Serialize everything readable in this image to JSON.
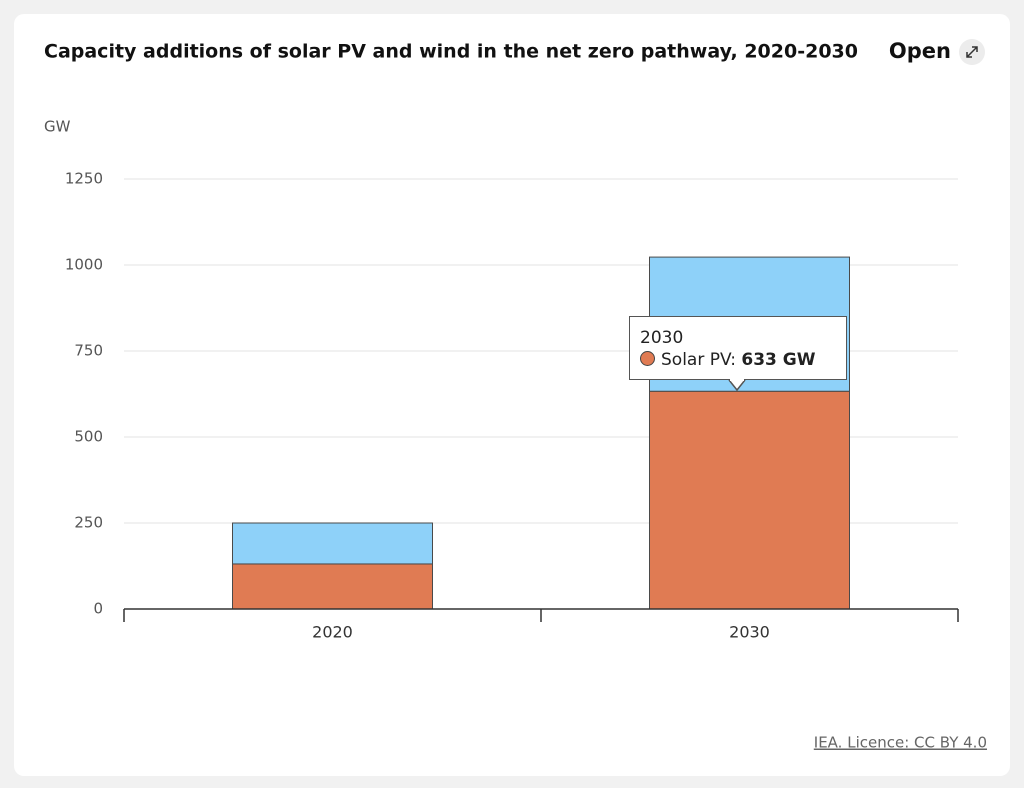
{
  "chart_data": {
    "type": "stacked-bar",
    "title": "Capacity additions of solar PV and wind in the net zero pathway, 2020-2030",
    "open_link": "Open",
    "y_label": "GW",
    "source": "IEA. Licence: CC BY 4.0",
    "categories": [
      "2020",
      "2030"
    ],
    "series": [
      {
        "name": "Solar PV",
        "color": "#e07b53",
        "values": [
          131,
          633
        ],
        "value_labels": [
          null,
          "633 GW"
        ]
      },
      {
        "color": "#8ed1f9",
        "values": [
          119,
          390
        ]
      }
    ],
    "ylim": [
      0,
      1250
    ],
    "yticks": [
      0,
      250,
      500,
      750,
      1000,
      1250
    ],
    "grid": true
  }
}
